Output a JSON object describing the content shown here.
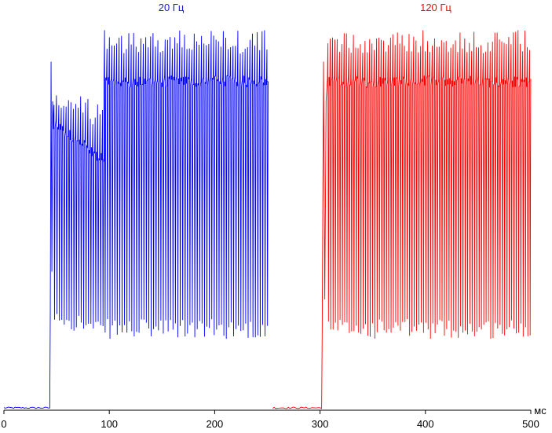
{
  "chart_data": {
    "type": "line",
    "title": "",
    "xlabel": "",
    "ylabel": "",
    "x_unit": "мс",
    "xlim": [
      0,
      500
    ],
    "ylim": [
      0,
      100
    ],
    "x_ticks": [
      0,
      100,
      200,
      300,
      400,
      500
    ],
    "grid": false,
    "legend": "none",
    "series": [
      {
        "name": "20 Гц",
        "color": "#0000ff",
        "segments": [
          {
            "x": [
              0,
              44
            ],
            "baseline": 0.6
          },
          {
            "x": [
              44,
              47
            ],
            "max": 88,
            "min": 25
          },
          {
            "x": [
              47,
              95
            ],
            "max_start": 82,
            "max_end": 77,
            "min_start": 22,
            "min_end": 17,
            "mean_start": 72,
            "mean_end": 63,
            "period": 2.3
          },
          {
            "x": [
              95,
              250
            ],
            "max": 96,
            "min": 18,
            "mean": 83,
            "period": 2.3
          }
        ]
      },
      {
        "name": "120 Гц",
        "color": "#ff0000",
        "segments": [
          {
            "x": [
              255,
              302
            ],
            "baseline": 0.6
          },
          {
            "x": [
              302,
              307
            ],
            "max": 88,
            "min": 18
          },
          {
            "x": [
              307,
              500
            ],
            "max": 96,
            "min": 18,
            "mean": 83,
            "period": 2.2
          }
        ]
      }
    ]
  }
}
